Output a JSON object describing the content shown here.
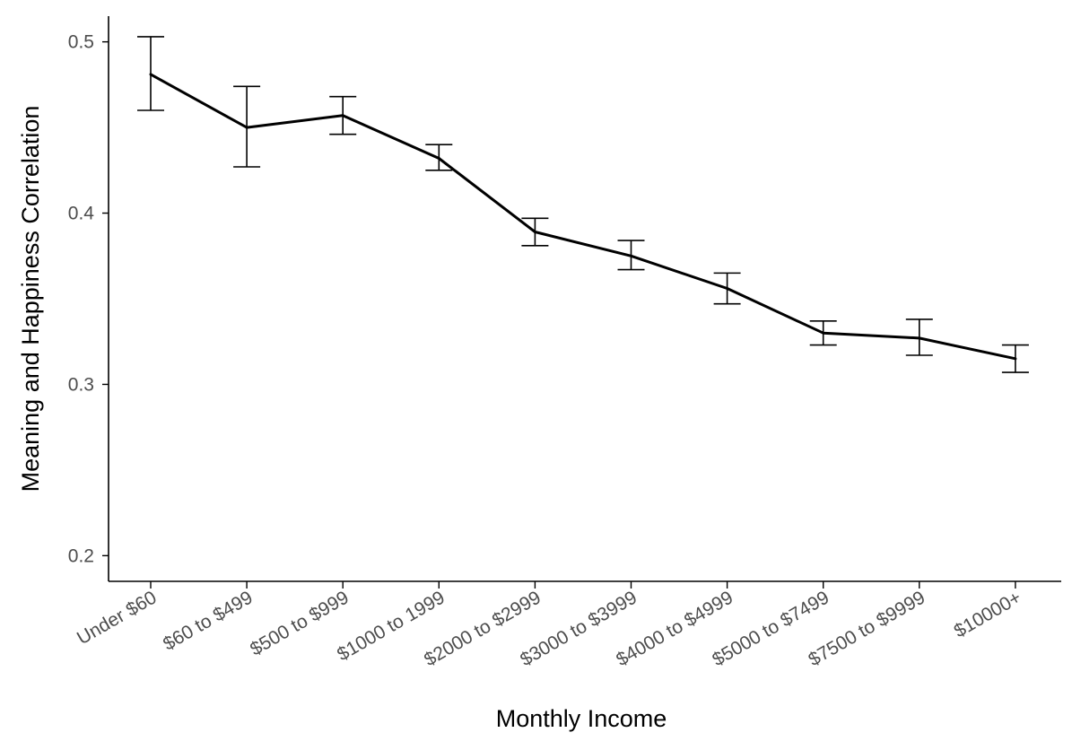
{
  "chart_data": {
    "type": "line",
    "title": "",
    "xlabel": "Monthly Income",
    "ylabel": "Meaning and Happiness Correlation",
    "categories": [
      "Under $60",
      "$60 to $499",
      "$500 to $999",
      "$1000 to 1999",
      "$2000 to $2999",
      "$3000 to $3999",
      "$4000 to $4999",
      "$5000 to $7499",
      "$7500 to $9999",
      "$10000+"
    ],
    "values": [
      0.481,
      0.45,
      0.457,
      0.432,
      0.389,
      0.375,
      0.356,
      0.33,
      0.327,
      0.315
    ],
    "error_low": [
      0.46,
      0.427,
      0.446,
      0.425,
      0.381,
      0.367,
      0.347,
      0.323,
      0.317,
      0.307
    ],
    "error_high": [
      0.503,
      0.474,
      0.468,
      0.44,
      0.397,
      0.384,
      0.365,
      0.337,
      0.338,
      0.323
    ],
    "ylim": [
      0.185,
      0.515
    ],
    "yticks": [
      0.2,
      0.3,
      0.4,
      0.5
    ],
    "ytick_labels": [
      "0.2",
      "0.3",
      "0.4",
      "0.5"
    ],
    "grid": false,
    "legend": "none",
    "colors": {
      "line": "#000000",
      "tick_label": "#4d4d4d"
    }
  }
}
